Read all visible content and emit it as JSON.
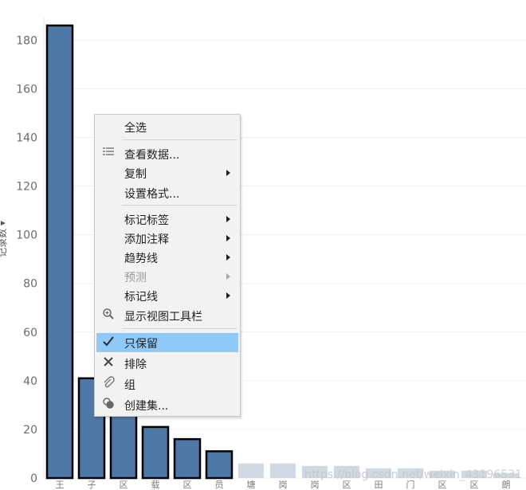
{
  "chart_data": {
    "type": "bar",
    "ylim": [
      0,
      186
    ],
    "yticks": [
      0,
      20,
      40,
      60,
      80,
      100,
      120,
      140,
      160,
      180
    ],
    "ylabel_partial": "记录数 ▾",
    "categories": [
      "王",
      "子",
      "区",
      "载",
      "区",
      "员",
      "塘",
      "岗",
      "岗",
      "区",
      "田",
      "门",
      "区",
      "区",
      "朗"
    ],
    "values": [
      186,
      41,
      28,
      21,
      16,
      11,
      6,
      6,
      5,
      5,
      4,
      4,
      3,
      3,
      2
    ],
    "highlighted_count": 6,
    "colors": {
      "bar": "#4e79a7",
      "bar_dim": "#cfd8e3",
      "bar_outline": "#000000"
    }
  },
  "context_menu": {
    "items": [
      {
        "label": "全选",
        "icon": "",
        "submenu": false,
        "disabled": false
      },
      {
        "label": "查看数据...",
        "icon": "table-icon",
        "submenu": false,
        "disabled": false
      },
      {
        "label": "复制",
        "icon": "",
        "submenu": true,
        "disabled": false
      },
      {
        "label": "设置格式...",
        "icon": "",
        "submenu": false,
        "disabled": false
      },
      {
        "label": "标记标签",
        "icon": "",
        "submenu": true,
        "disabled": false
      },
      {
        "label": "添加注释",
        "icon": "",
        "submenu": true,
        "disabled": false
      },
      {
        "label": "趋势线",
        "icon": "",
        "submenu": true,
        "disabled": false
      },
      {
        "label": "预测",
        "icon": "",
        "submenu": true,
        "disabled": true
      },
      {
        "label": "标记线",
        "icon": "",
        "submenu": true,
        "disabled": false
      },
      {
        "label": "显示视图工具栏",
        "icon": "zoom-icon",
        "submenu": false,
        "disabled": false
      },
      {
        "label": "只保留",
        "icon": "check-icon",
        "submenu": false,
        "disabled": false
      },
      {
        "label": "排除",
        "icon": "x-icon",
        "submenu": false,
        "disabled": false
      },
      {
        "label": "组",
        "icon": "paperclip-icon",
        "submenu": false,
        "disabled": false
      },
      {
        "label": "创建集...",
        "icon": "sets-icon",
        "submenu": false,
        "disabled": false
      }
    ]
  },
  "watermark": "https://blog.csdn.net/weixin_43196531"
}
